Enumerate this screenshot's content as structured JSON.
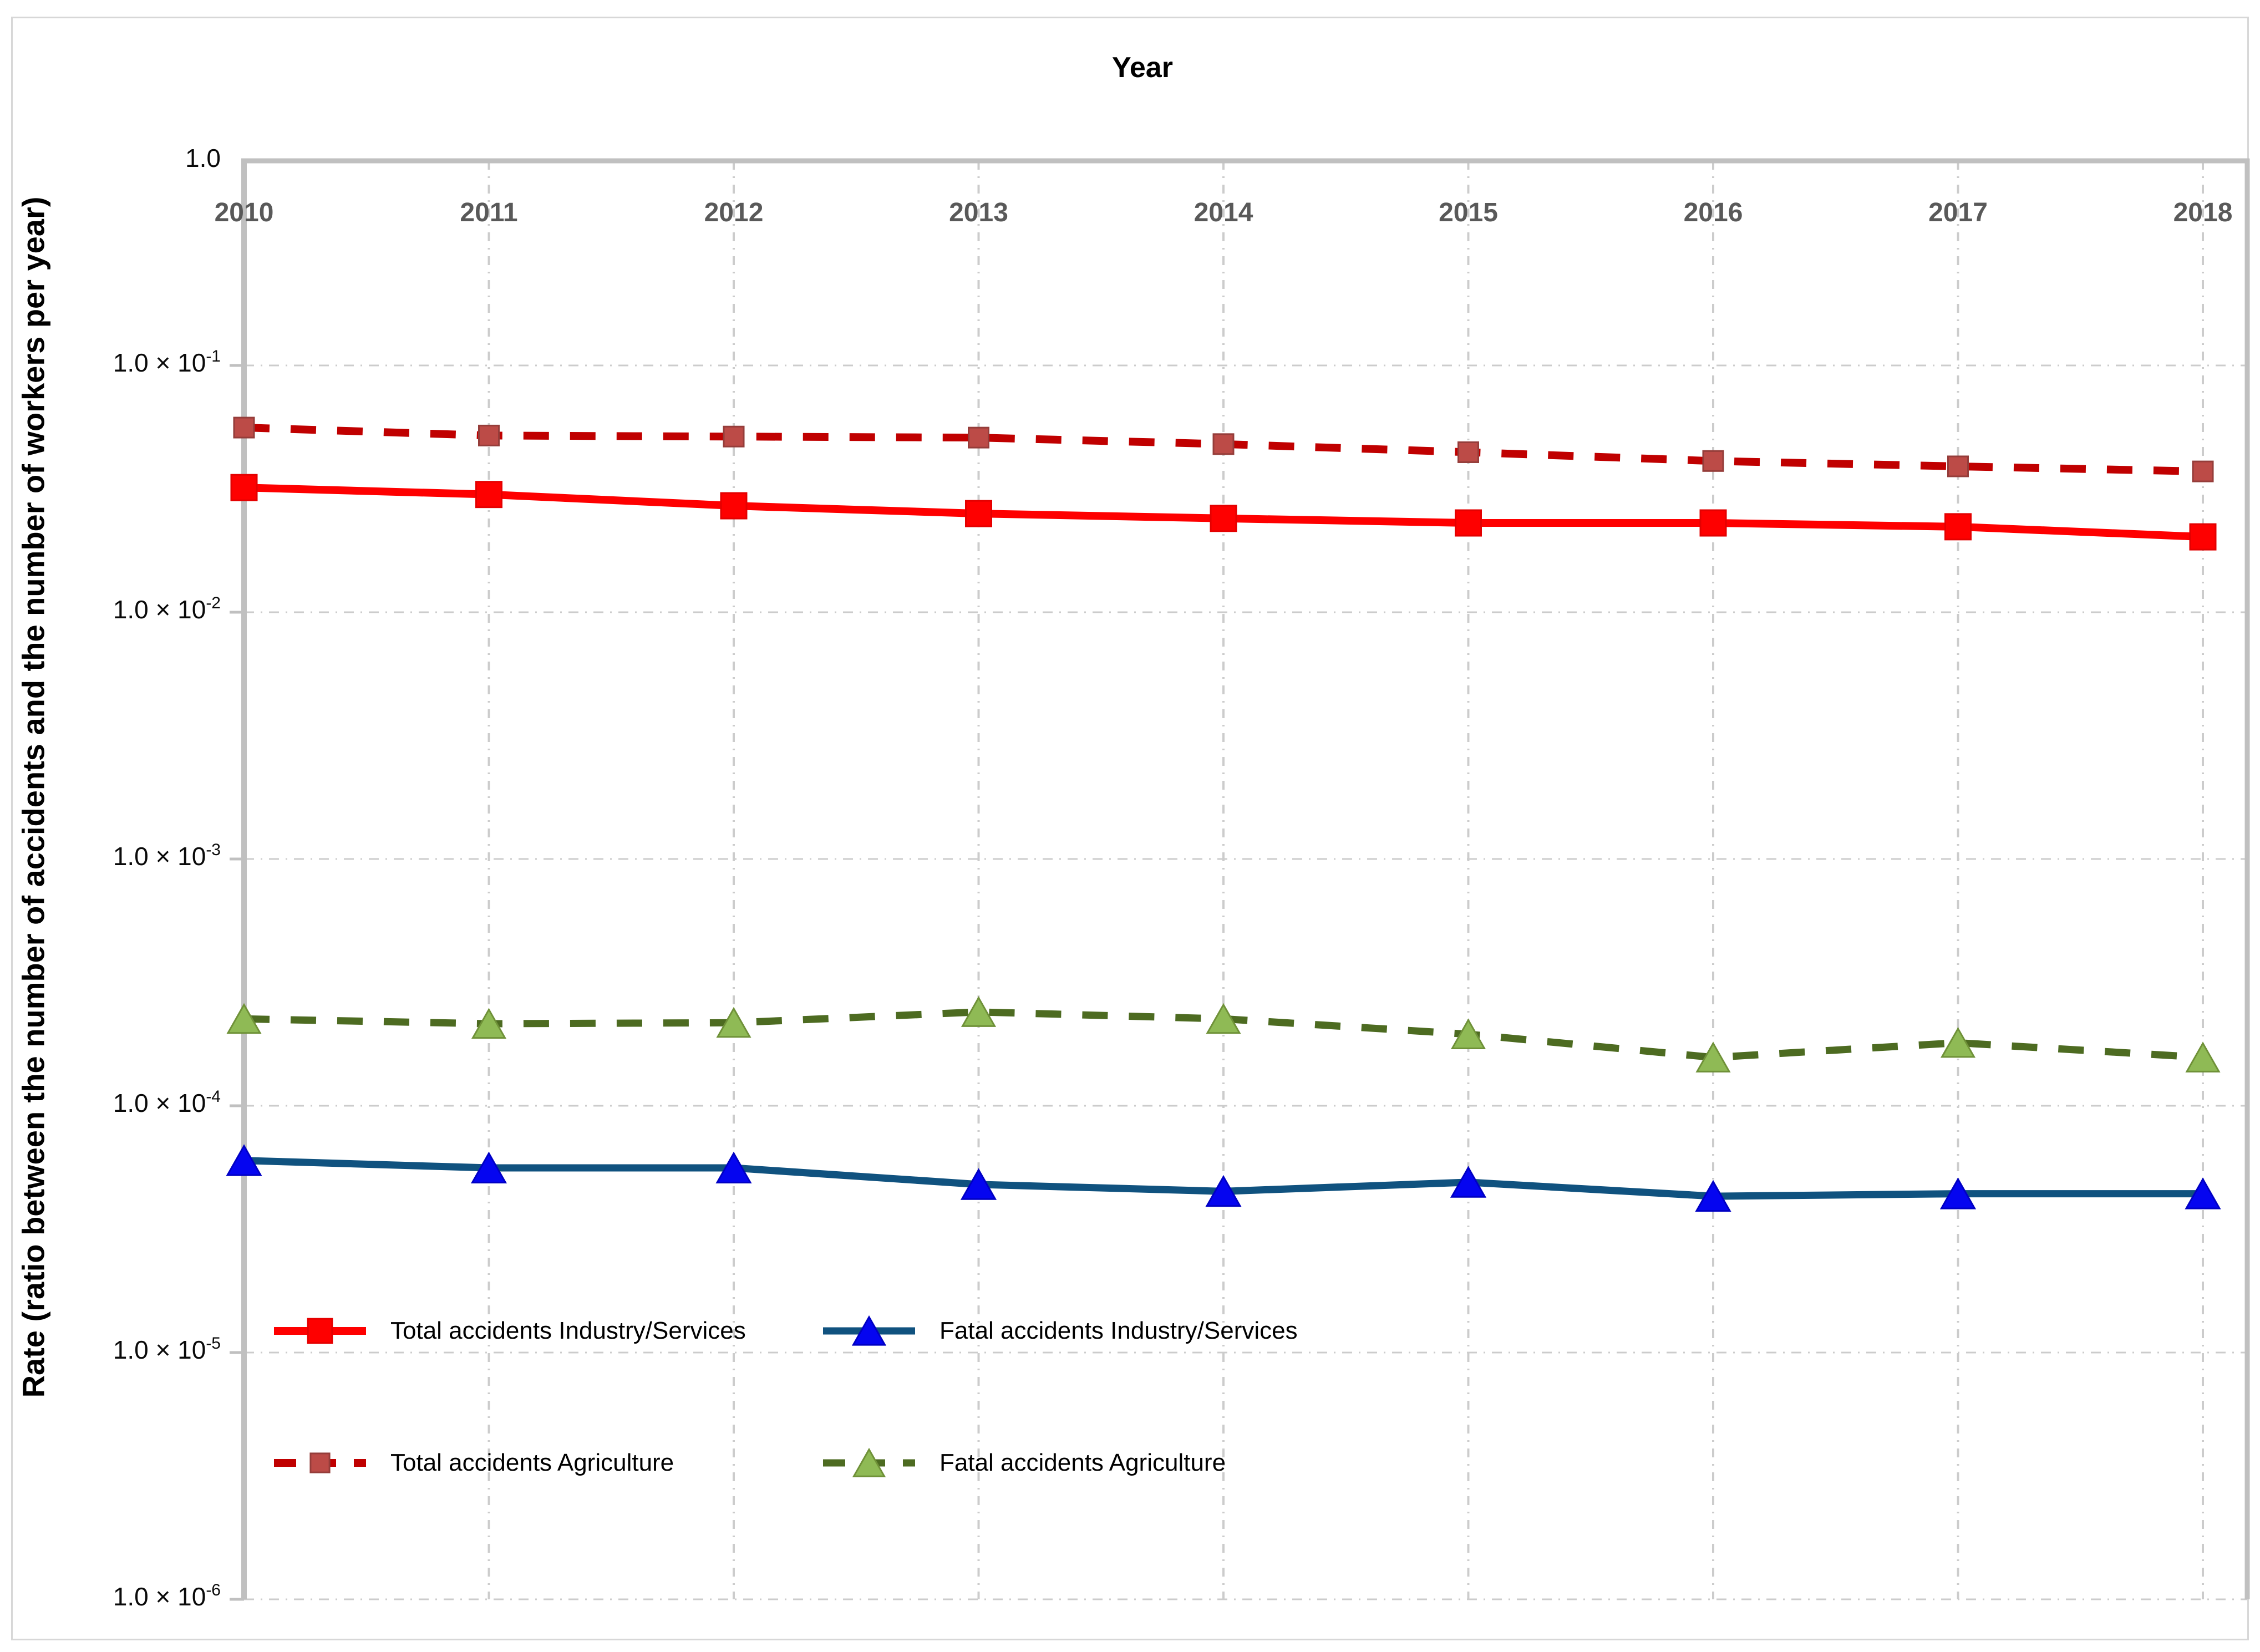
{
  "titles": {
    "x_axis": "Year",
    "y_axis": "Rate (ratio between the number of accidents and the  number of workers per year)"
  },
  "legend": {
    "items": [
      {
        "label": "Total accidents Industry/Services",
        "series": "total_industry",
        "row": 0,
        "col": 0
      },
      {
        "label": "Fatal accidents Industry/Services",
        "series": "fatal_industry",
        "row": 0,
        "col": 1
      },
      {
        "label": "Total accidents Agriculture",
        "series": "total_agriculture",
        "row": 1,
        "col": 0
      },
      {
        "label": "Fatal accidents Agriculture",
        "series": "fatal_agriculture",
        "row": 1,
        "col": 1
      }
    ]
  },
  "chart_data": {
    "type": "line",
    "x_scale": "categorical-years",
    "y_scale": "log",
    "ylim": [
      1e-06,
      1.0
    ],
    "grid": "both-dash-dot",
    "legend_position": "inside-bottom-left",
    "x": [
      2010,
      2011,
      2012,
      2013,
      2014,
      2015,
      2016,
      2017,
      2018
    ],
    "x_ticks": [
      "2010",
      "2011",
      "2012",
      "2013",
      "2014",
      "2015",
      "2016",
      "2017",
      "2018"
    ],
    "y_ticks": [
      {
        "mantissa": "1.0",
        "exponent": ""
      },
      {
        "mantissa": "1.0 × 10",
        "exponent": "-1"
      },
      {
        "mantissa": "1.0 × 10",
        "exponent": "-2"
      },
      {
        "mantissa": "1.0 × 10",
        "exponent": "-3"
      },
      {
        "mantissa": "1.0 × 10",
        "exponent": "-4"
      },
      {
        "mantissa": "1.0 × 10",
        "exponent": "-5"
      },
      {
        "mantissa": "1.0 × 10",
        "exponent": "-6"
      }
    ],
    "series": [
      {
        "name": "total_industry",
        "label": "Total accidents Industry/Services",
        "values": [
          0.032,
          0.03,
          0.027,
          0.0251,
          0.024,
          0.023,
          0.023,
          0.0222,
          0.0202
        ],
        "line_color": "#fe0000",
        "line_style": "solid",
        "line_width": 14,
        "marker": "square",
        "marker_size": 46,
        "marker_fill": "#fe0000",
        "marker_stroke": "#e40000"
      },
      {
        "name": "fatal_industry",
        "label": "Fatal accidents Industry/Services",
        "values": [
          6e-05,
          5.6e-05,
          5.6e-05,
          4.8e-05,
          4.5e-05,
          4.9e-05,
          4.3e-05,
          4.4e-05,
          4.4e-05
        ],
        "line_color": "#10527f",
        "line_style": "solid",
        "line_width": 13,
        "marker": "triangle",
        "marker_size": 60,
        "marker_fill": "#0505f0",
        "marker_stroke": "#0000c4"
      },
      {
        "name": "total_agriculture",
        "label": "Total accidents Agriculture",
        "values": [
          0.056,
          0.052,
          0.0515,
          0.051,
          0.048,
          0.0445,
          0.041,
          0.039,
          0.0372
        ],
        "line_color": "#c00000",
        "line_style": "dashed",
        "line_width": 14,
        "marker": "square",
        "marker_size": 36,
        "marker_fill": "#bc4b47",
        "marker_stroke": "#953d3a"
      },
      {
        "name": "fatal_agriculture",
        "label": "Fatal accidents Agriculture",
        "values": [
          0.000225,
          0.000215,
          0.000217,
          0.00024,
          0.000225,
          0.000195,
          0.000157,
          0.00018,
          0.000157
        ],
        "line_color": "#4d6b21",
        "line_style": "dashed",
        "line_width": 13,
        "marker": "triangle",
        "marker_size": 58,
        "marker_fill": "#8fba55",
        "marker_stroke": "#6f9138"
      }
    ],
    "colors": {
      "grid": "#cccccc",
      "axis": "#c0c0c0",
      "x_tick_label": "#595959",
      "y_tick_label": "#0a0a0a"
    }
  }
}
